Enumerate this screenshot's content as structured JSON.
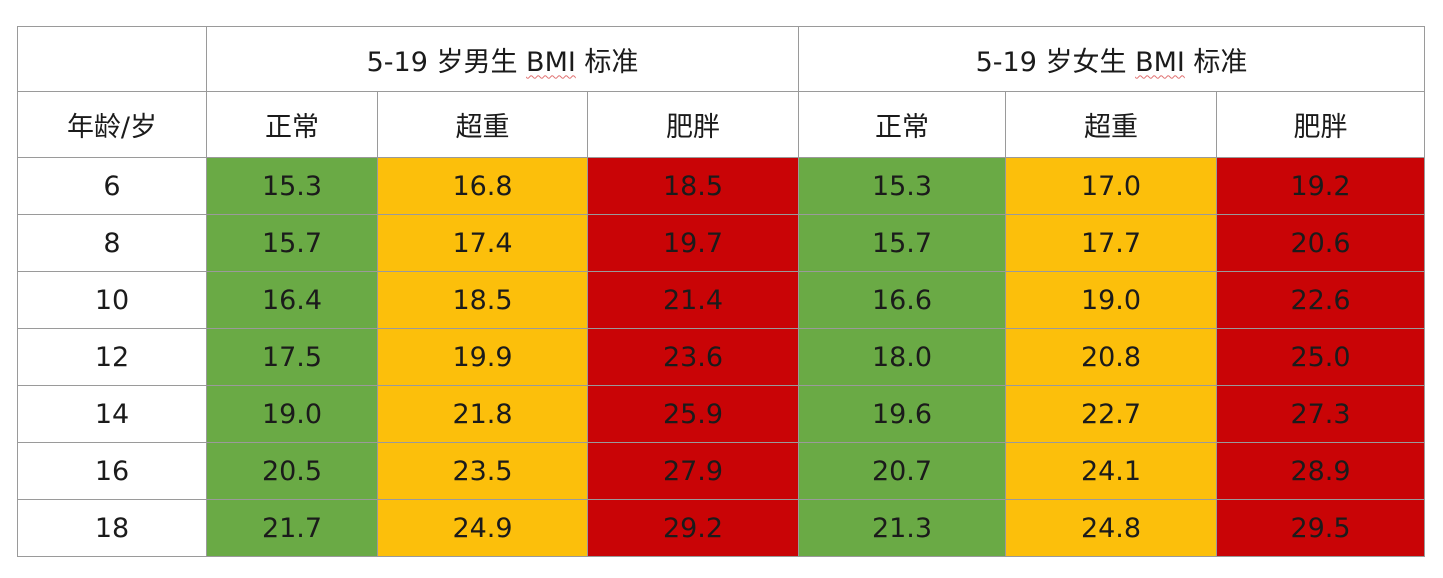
{
  "table": {
    "boys_title_pre": "5-19 岁男生 ",
    "girls_title_pre": "5-19 岁女生 ",
    "title_bmi": "BMI",
    "title_post": " 标准",
    "age_header": "年龄/岁",
    "categories": [
      "正常",
      "超重",
      "肥胖"
    ],
    "rows": [
      {
        "age": "6",
        "boys": [
          "15.3",
          "16.8",
          "18.5"
        ],
        "girls": [
          "15.3",
          "17.0",
          "19.2"
        ]
      },
      {
        "age": "8",
        "boys": [
          "15.7",
          "17.4",
          "19.7"
        ],
        "girls": [
          "15.7",
          "17.7",
          "20.6"
        ]
      },
      {
        "age": "10",
        "boys": [
          "16.4",
          "18.5",
          "21.4"
        ],
        "girls": [
          "16.6",
          "19.0",
          "22.6"
        ]
      },
      {
        "age": "12",
        "boys": [
          "17.5",
          "19.9",
          "23.6"
        ],
        "girls": [
          "18.0",
          "20.8",
          "25.0"
        ]
      },
      {
        "age": "14",
        "boys": [
          "19.0",
          "21.8",
          "25.9"
        ],
        "girls": [
          "19.6",
          "22.7",
          "27.3"
        ]
      },
      {
        "age": "16",
        "boys": [
          "20.5",
          "23.5",
          "27.9"
        ],
        "girls": [
          "20.7",
          "24.1",
          "28.9"
        ]
      },
      {
        "age": "18",
        "boys": [
          "21.7",
          "24.9",
          "29.2"
        ],
        "girls": [
          "21.3",
          "24.8",
          "29.5"
        ]
      }
    ]
  },
  "colors": {
    "normal": "#6aaa45",
    "overweight": "#fcbf0b",
    "obese": "#c90406"
  }
}
